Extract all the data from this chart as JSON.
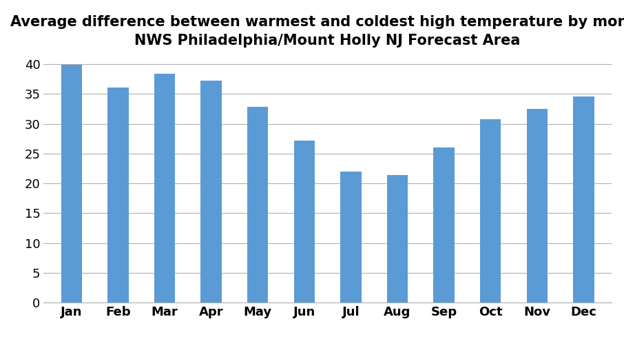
{
  "title_line1": "Average difference between warmest and coldest high temperature by month",
  "title_line2": "NWS Philadelphia/Mount Holly NJ Forecast Area",
  "categories": [
    "Jan",
    "Feb",
    "Mar",
    "Apr",
    "May",
    "Jun",
    "Jul",
    "Aug",
    "Sep",
    "Oct",
    "Nov",
    "Dec"
  ],
  "values": [
    39.9,
    36.1,
    38.4,
    37.2,
    32.8,
    27.2,
    22.0,
    21.4,
    26.0,
    30.8,
    32.5,
    34.6
  ],
  "bar_color": "#5B9BD5",
  "ylim": [
    0,
    42
  ],
  "yticks": [
    0,
    5,
    10,
    15,
    20,
    25,
    30,
    35,
    40
  ],
  "background_color": "#ffffff",
  "grid_color": "#b0b0b0",
  "title_fontsize": 15,
  "tick_fontsize": 13,
  "bar_width": 0.45
}
